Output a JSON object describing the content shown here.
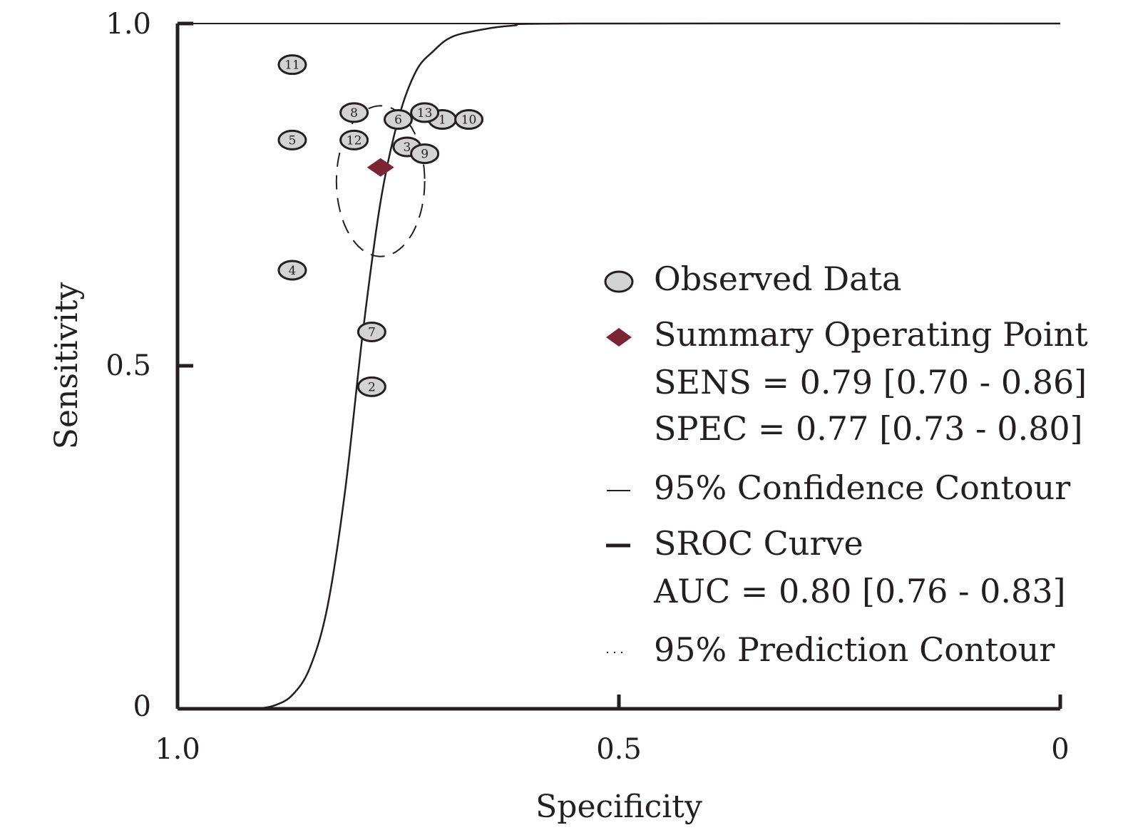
{
  "chart_data": {
    "type": "scatter",
    "title": "",
    "xlabel": "Specificity",
    "ylabel": "Sensitivity",
    "xlim": [
      1.0,
      0
    ],
    "ylim": [
      0,
      1.0
    ],
    "x_reversed": true,
    "x_ticks": [
      "1.0",
      "0.5",
      "0"
    ],
    "y_ticks": [
      "0",
      "0.5",
      "1.0"
    ],
    "colors": {
      "axis": "#231f20",
      "point_fill": "#d3d3d3",
      "summary": "#7b2433"
    },
    "observed": [
      {
        "label": "1",
        "specificity": 0.7,
        "sensitivity": 0.86
      },
      {
        "label": "2",
        "specificity": 0.78,
        "sensitivity": 0.47
      },
      {
        "label": "3",
        "specificity": 0.74,
        "sensitivity": 0.82
      },
      {
        "label": "4",
        "specificity": 0.87,
        "sensitivity": 0.64
      },
      {
        "label": "5",
        "specificity": 0.87,
        "sensitivity": 0.83
      },
      {
        "label": "6",
        "specificity": 0.75,
        "sensitivity": 0.86
      },
      {
        "label": "7",
        "specificity": 0.78,
        "sensitivity": 0.55
      },
      {
        "label": "8",
        "specificity": 0.8,
        "sensitivity": 0.87
      },
      {
        "label": "9",
        "specificity": 0.72,
        "sensitivity": 0.81
      },
      {
        "label": "10",
        "specificity": 0.67,
        "sensitivity": 0.86
      },
      {
        "label": "11",
        "specificity": 0.87,
        "sensitivity": 0.94
      },
      {
        "label": "12",
        "specificity": 0.8,
        "sensitivity": 0.83
      },
      {
        "label": "13",
        "specificity": 0.72,
        "sensitivity": 0.87
      }
    ],
    "summary_point": {
      "specificity": 0.77,
      "sensitivity": 0.79
    },
    "confidence_contour": {
      "center_specificity": 0.77,
      "center_sensitivity": 0.77,
      "half_width": 0.05,
      "half_height": 0.11
    },
    "sroc_curve": [
      [
        0.91,
        0.0
      ],
      [
        0.89,
        0.005
      ],
      [
        0.87,
        0.02
      ],
      [
        0.85,
        0.06
      ],
      [
        0.83,
        0.15
      ],
      [
        0.81,
        0.32
      ],
      [
        0.79,
        0.55
      ],
      [
        0.77,
        0.74
      ],
      [
        0.75,
        0.86
      ],
      [
        0.73,
        0.93
      ],
      [
        0.71,
        0.96
      ],
      [
        0.69,
        0.98
      ],
      [
        0.66,
        0.99
      ],
      [
        0.62,
        0.997
      ],
      [
        0.55,
        1.0
      ],
      [
        0.0,
        1.0
      ]
    ],
    "legend": {
      "position": "right",
      "observed": "Observed Data",
      "summary": "Summary Operating Point",
      "sens": "SENS = 0.79 [0.70 - 0.86]",
      "spec": "SPEC = 0.77 [0.73 - 0.80]",
      "confidence": "95% Confidence Contour",
      "sroc": "SROC Curve",
      "auc": "AUC = 0.80 [0.76 - 0.83]",
      "prediction": "95% Prediction Contour"
    }
  }
}
